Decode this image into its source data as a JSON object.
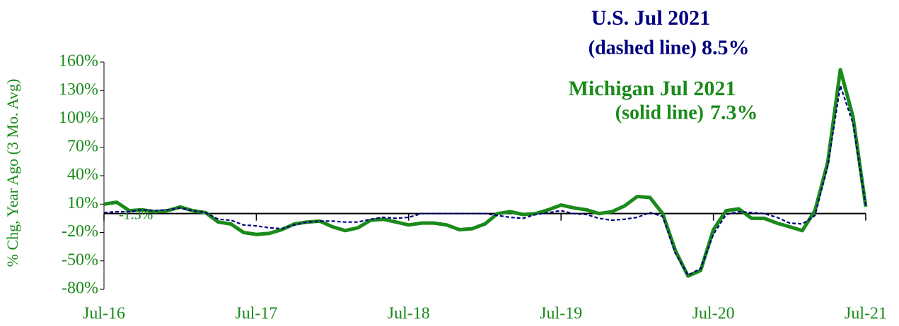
{
  "chart_data": {
    "type": "line",
    "y_label": "% Chg, Year Ago (3 Mo. Avg)",
    "categories": [
      "Jul-16",
      null,
      null,
      null,
      null,
      null,
      null,
      null,
      null,
      null,
      null,
      null,
      "Jul-17",
      null,
      null,
      null,
      null,
      null,
      null,
      null,
      null,
      null,
      null,
      null,
      "Jul-18",
      null,
      null,
      null,
      null,
      null,
      null,
      null,
      null,
      null,
      null,
      null,
      "Jul-19",
      null,
      null,
      null,
      null,
      null,
      null,
      null,
      null,
      null,
      null,
      null,
      "Jul-20",
      null,
      null,
      null,
      null,
      null,
      null,
      null,
      null,
      null,
      null,
      null,
      "Jul-21"
    ],
    "series": [
      {
        "color": "#1a8a1a",
        "style": "solid",
        "values": [
          10,
          12,
          3,
          4,
          2,
          3,
          7,
          3,
          1,
          -9,
          -11,
          -20,
          -22,
          -21,
          -17,
          -11,
          -9,
          -8,
          -14,
          -18,
          -15,
          -7,
          -6,
          -9,
          -12,
          -10,
          -10,
          -12,
          -17,
          -16,
          -11,
          0,
          2,
          -1,
          0,
          4,
          9,
          6,
          4,
          0,
          2,
          8,
          18,
          17,
          0,
          -39,
          -66,
          -60,
          -17,
          3,
          5,
          -5,
          -5,
          -10,
          -14,
          -18,
          3,
          54,
          152,
          102,
          7.3
        ]
      },
      {
        "color": "#000080",
        "style": "dashed",
        "values": [
          1,
          2,
          2,
          4,
          3,
          4,
          6,
          3,
          1,
          -6,
          -7,
          -12,
          -13,
          -15,
          -16,
          -12,
          -9,
          -8,
          -8,
          -9,
          -9,
          -6,
          -4,
          -5,
          -4,
          0,
          0,
          0,
          0,
          0,
          0,
          -2,
          -4,
          -5,
          -1,
          1,
          3,
          0,
          -1,
          -5,
          -7,
          -6,
          -4,
          1,
          -3,
          -42,
          -65,
          -58,
          -22,
          -1,
          2,
          1,
          0,
          -4,
          -10,
          -11,
          -2,
          50,
          135,
          95,
          8.5
        ]
      }
    ],
    "ylim": [
      -80,
      160
    ],
    "yticks": [
      {
        "value": -80,
        "label": "-80%"
      },
      {
        "value": -50,
        "label": "-50%"
      },
      {
        "value": -20,
        "label": "-20%"
      },
      {
        "value": 10,
        "label": "10%"
      },
      {
        "value": 40,
        "label": "40%"
      },
      {
        "value": 70,
        "label": "70%"
      },
      {
        "value": 100,
        "label": "100%"
      },
      {
        "value": 130,
        "label": "130%"
      },
      {
        "value": 160,
        "label": "160%"
      }
    ],
    "annotations": [
      {
        "text": "U.S.  Jul 2021",
        "color": "#000080"
      },
      {
        "text": "(dashed line)",
        "color": "#000080"
      },
      {
        "text": "8.5%",
        "color": "#000080"
      },
      {
        "text": "Michigan  Jul 2021",
        "color": "#1a8a1a"
      },
      {
        "text": "(solid line)",
        "color": "#1a8a1a"
      },
      {
        "text": "7.3%",
        "color": "#1a8a1a"
      },
      {
        "text": "-1.3%",
        "color": "#1a8a1a"
      }
    ]
  }
}
